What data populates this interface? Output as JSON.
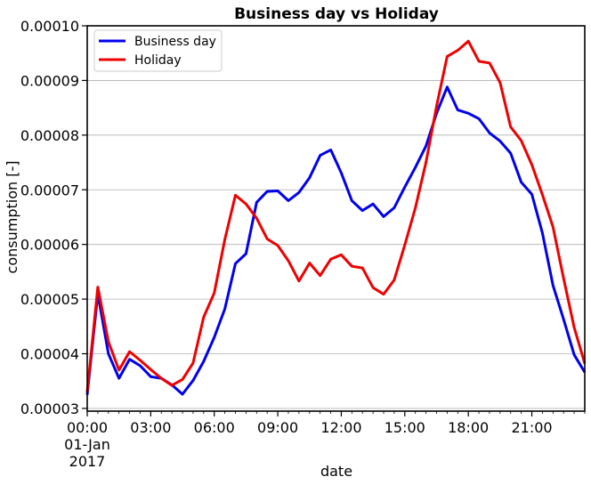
{
  "chart_data": {
    "type": "line",
    "title": "Business day vs Holiday",
    "xlabel": "date",
    "ylabel": "consumption [-]",
    "ylim": [
      2.95e-05,
      0.0001
    ],
    "yticks": [
      3e-05,
      4e-05,
      5e-05,
      6e-05,
      7e-05,
      8e-05,
      9e-05,
      0.0001
    ],
    "ytick_labels": [
      "0.00003",
      "0.00004",
      "0.00005",
      "0.00006",
      "0.00007",
      "0.00008",
      "0.00009",
      "0.00010"
    ],
    "xlim": [
      "00:00",
      "23:30"
    ],
    "xticks": [
      "00:00",
      "03:00",
      "06:00",
      "09:00",
      "12:00",
      "15:00",
      "18:00",
      "21:00"
    ],
    "xtick_labels": [
      "00:00",
      "03:00",
      "06:00",
      "09:00",
      "12:00",
      "15:00",
      "18:00",
      "21:00"
    ],
    "xtick_sublabels": [
      "01-Jan",
      "2017"
    ],
    "grid": "horizontal",
    "legend_position": "top-left",
    "x": [
      "00:00",
      "00:30",
      "01:00",
      "01:30",
      "02:00",
      "02:30",
      "03:00",
      "03:30",
      "04:00",
      "04:30",
      "05:00",
      "05:30",
      "06:00",
      "06:30",
      "07:00",
      "07:30",
      "08:00",
      "08:30",
      "09:00",
      "09:30",
      "10:00",
      "10:30",
      "11:00",
      "11:30",
      "12:00",
      "12:30",
      "13:00",
      "13:30",
      "14:00",
      "14:30",
      "15:00",
      "15:30",
      "16:00",
      "16:30",
      "17:00",
      "17:30",
      "18:00",
      "18:30",
      "19:00",
      "19:30",
      "20:00",
      "20:30",
      "21:00",
      "21:30",
      "22:00",
      "22:30",
      "23:00",
      "23:30"
    ],
    "series": [
      {
        "name": "Business day",
        "color": "#0000ee",
        "values": [
          3.25e-05,
          5.1e-05,
          4e-05,
          3.55e-05,
          3.9e-05,
          3.78e-05,
          3.58e-05,
          3.55e-05,
          3.43e-05,
          3.26e-05,
          3.51e-05,
          3.86e-05,
          4.3e-05,
          4.82e-05,
          5.65e-05,
          5.83e-05,
          6.77e-05,
          6.97e-05,
          6.98e-05,
          6.8e-05,
          6.95e-05,
          7.22e-05,
          7.63e-05,
          7.73e-05,
          7.31e-05,
          6.8e-05,
          6.62e-05,
          6.74e-05,
          6.51e-05,
          6.67e-05,
          7.05e-05,
          7.41e-05,
          7.8e-05,
          8.4e-05,
          8.88e-05,
          8.46e-05,
          8.4e-05,
          8.3e-05,
          8.04e-05,
          7.89e-05,
          7.67e-05,
          7.14e-05,
          6.92e-05,
          6.21e-05,
          5.25e-05,
          4.63e-05,
          3.98e-05,
          3.66e-05
        ]
      },
      {
        "name": "Holiday",
        "color": "#ee0000",
        "values": [
          3.3e-05,
          5.22e-05,
          4.22e-05,
          3.7e-05,
          4.04e-05,
          3.88e-05,
          3.71e-05,
          3.55e-05,
          3.42e-05,
          3.53e-05,
          3.83e-05,
          4.67e-05,
          5.11e-05,
          6.09e-05,
          6.9e-05,
          6.74e-05,
          6.48e-05,
          6.1e-05,
          5.98e-05,
          5.7e-05,
          5.33e-05,
          5.66e-05,
          5.43e-05,
          5.73e-05,
          5.81e-05,
          5.6e-05,
          5.57e-05,
          5.21e-05,
          5.09e-05,
          5.35e-05,
          5.99e-05,
          6.67e-05,
          7.5e-05,
          8.53e-05,
          9.44e-05,
          9.55e-05,
          9.72e-05,
          9.35e-05,
          9.32e-05,
          8.96e-05,
          8.15e-05,
          7.9e-05,
          7.46e-05,
          6.91e-05,
          6.32e-05,
          5.38e-05,
          4.48e-05,
          3.82e-05
        ]
      }
    ]
  }
}
